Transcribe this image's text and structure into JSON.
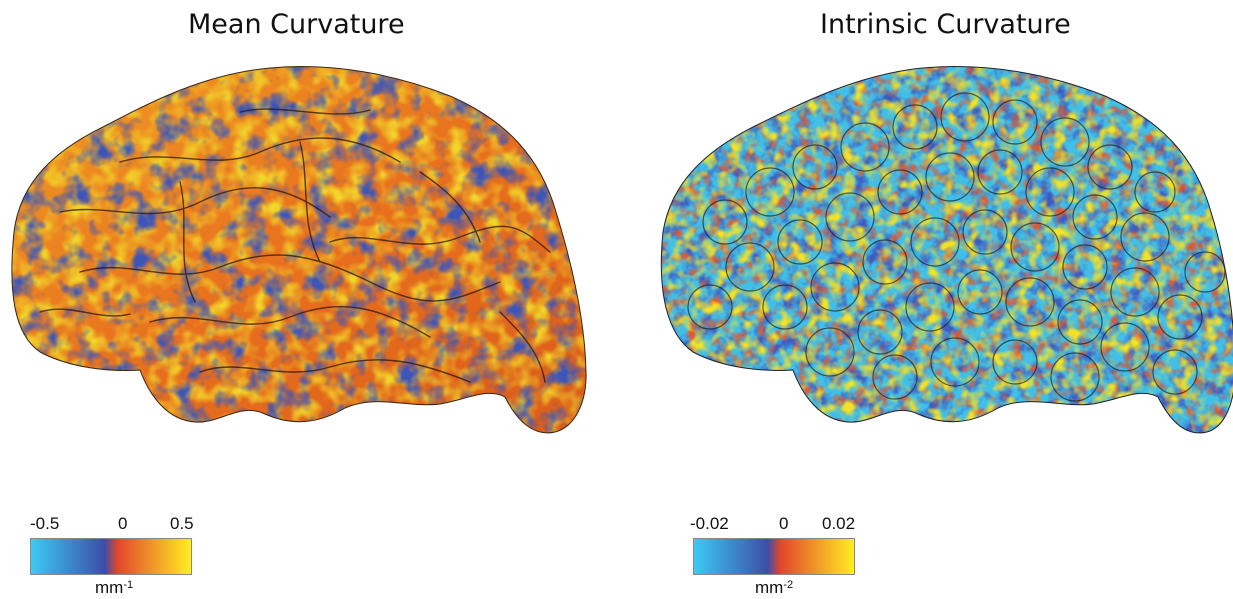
{
  "panels": [
    {
      "title": "Mean Curvature",
      "image": "brain-surface-mean-curvature",
      "colorbar": {
        "min_label": "-0.5",
        "mid_label": "0",
        "max_label": "0.5",
        "unit_base": "mm",
        "unit_exponent": "-1",
        "colors": [
          "#3ccaf2",
          "#3d4ea8",
          "#e2462c",
          "#ffee22"
        ]
      }
    },
    {
      "title": "Intrinsic Curvature",
      "image": "brain-surface-intrinsic-curvature",
      "colorbar": {
        "min_label": "-0.02",
        "mid_label": "0",
        "max_label": "0.02",
        "unit_base": "mm",
        "unit_exponent": "-2",
        "colors": [
          "#3ccaf2",
          "#3d4ea8",
          "#e2462c",
          "#ffee22"
        ]
      }
    }
  ]
}
